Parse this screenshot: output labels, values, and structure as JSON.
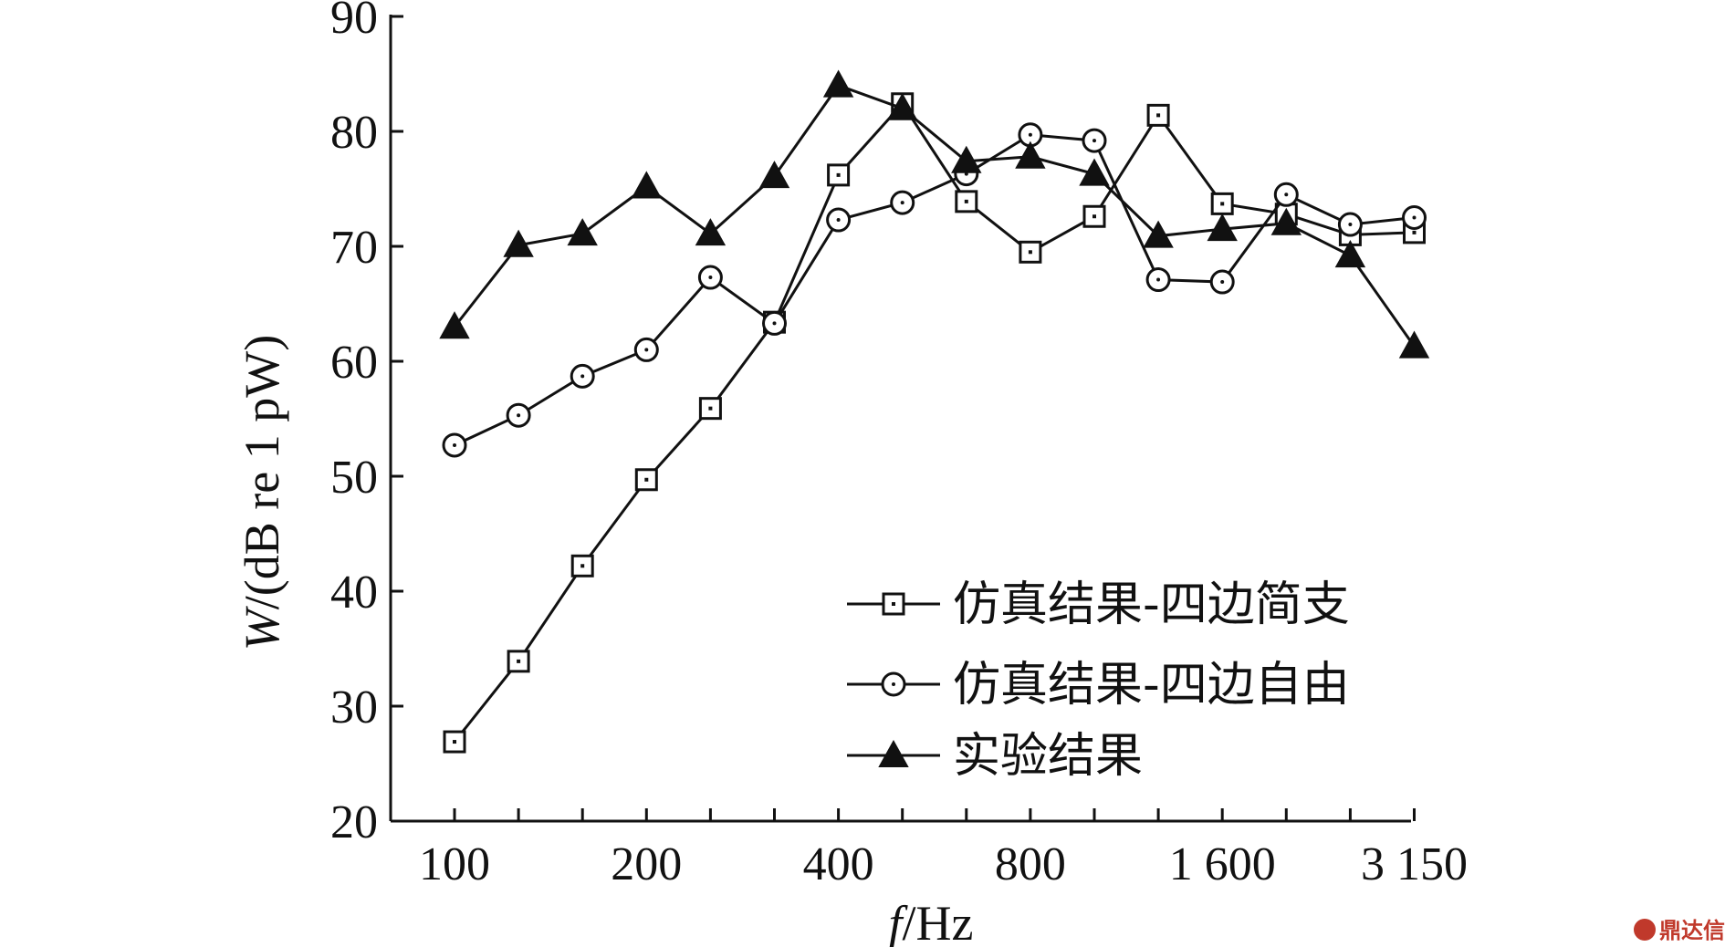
{
  "chart_data": {
    "type": "line",
    "xlabel": {
      "italic": "f",
      "unit": "/Hz"
    },
    "ylabel": {
      "italic": "W",
      "unit": "/(dB re 1 pW)"
    },
    "ylim": [
      20,
      90
    ],
    "yticks": [
      20,
      30,
      40,
      50,
      60,
      70,
      80,
      90
    ],
    "x": [
      100,
      125,
      160,
      200,
      250,
      315,
      400,
      500,
      630,
      800,
      1000,
      1250,
      1600,
      2000,
      2500,
      3150
    ],
    "xtick_labels": [
      {
        "index": 0,
        "label": "100"
      },
      {
        "index": 3,
        "label": "200"
      },
      {
        "index": 6,
        "label": "400"
      },
      {
        "index": 9,
        "label": "800"
      },
      {
        "index": 12,
        "label": "1 600"
      },
      {
        "index": 15,
        "label": "3 150"
      }
    ],
    "grid": false,
    "legend_position": "bottom-right",
    "series": [
      {
        "name": "仿真结果-四边简支",
        "marker": "square",
        "values": [
          26.9,
          33.9,
          42.2,
          49.7,
          55.9,
          63.4,
          76.2,
          82.4,
          73.9,
          69.5,
          72.6,
          81.4,
          73.7,
          72.8,
          71.0,
          71.2
        ]
      },
      {
        "name": "仿真结果-四边自由",
        "marker": "circle",
        "values": [
          52.7,
          55.3,
          58.7,
          61.0,
          67.3,
          63.3,
          72.3,
          73.8,
          76.3,
          79.7,
          79.2,
          67.1,
          66.9,
          74.5,
          71.9,
          72.5
        ]
      },
      {
        "name": "实验结果",
        "marker": "triangle",
        "values": [
          63.0,
          70.1,
          71.1,
          75.2,
          71.1,
          76.1,
          84.0,
          82.0,
          77.4,
          77.8,
          76.3,
          70.9,
          71.5,
          72.0,
          69.2,
          61.3
        ]
      }
    ]
  },
  "watermark": {
    "text": "鼎达信"
  }
}
